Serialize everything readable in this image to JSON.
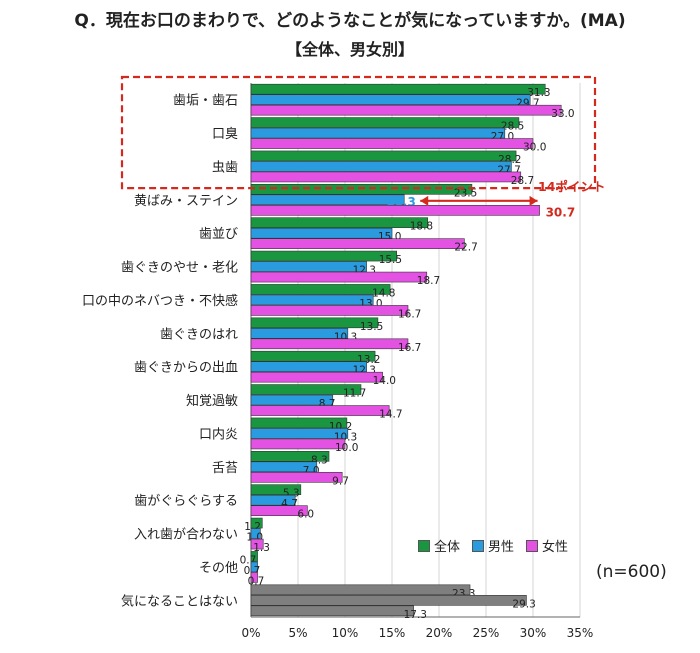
{
  "title": "Q．現在お口のまわりで、どのようなことが気になっていますか。(MA)",
  "subtitle": "【全体、男女別】",
  "sample_note": "(n=600)",
  "annotation": {
    "gap_label": "14ポイント",
    "gap_value": "30.7"
  },
  "colors": {
    "total": "#1a9641",
    "male": "#2b9be0",
    "female": "#e352e3",
    "none": "#7f7f7f",
    "highlight": "#d42a1e"
  },
  "chart_data": {
    "type": "bar",
    "orientation": "horizontal",
    "xlim": [
      0,
      35
    ],
    "xticks": [
      "0%",
      "5%",
      "10%",
      "15%",
      "20%",
      "25%",
      "30%",
      "35%"
    ],
    "legend": [
      "全体",
      "男性",
      "女性"
    ],
    "legend_position": "bottom-right",
    "categories": [
      "歯垢・歯石",
      "口臭",
      "虫歯",
      "黄ばみ・ステイン",
      "歯並び",
      "歯ぐきのやせ・老化",
      "口の中のネバつき・不快感",
      "歯ぐきのはれ",
      "歯ぐきからの出血",
      "知覚過敏",
      "口内炎",
      "舌苔",
      "歯がぐらぐらする",
      "入れ歯が合わない",
      "その他",
      "気になることはない"
    ],
    "series": [
      {
        "name": "全体",
        "values": [
          31.3,
          28.5,
          28.2,
          23.5,
          18.8,
          15.5,
          14.8,
          13.5,
          13.2,
          11.7,
          10.2,
          8.3,
          5.3,
          1.2,
          0.7,
          23.3
        ]
      },
      {
        "name": "男性",
        "values": [
          29.7,
          27.0,
          27.7,
          16.3,
          15.0,
          12.3,
          13.0,
          10.3,
          12.3,
          8.7,
          10.3,
          7.0,
          4.7,
          1.0,
          0.7,
          29.3
        ]
      },
      {
        "name": "女性",
        "values": [
          33.0,
          30.0,
          28.7,
          30.7,
          22.7,
          18.7,
          16.7,
          16.7,
          14.0,
          14.7,
          10.0,
          9.7,
          6.0,
          1.3,
          0.7,
          17.3
        ]
      }
    ],
    "highlighted_categories": [
      "歯垢・歯石",
      "口臭",
      "虫歯"
    ]
  }
}
